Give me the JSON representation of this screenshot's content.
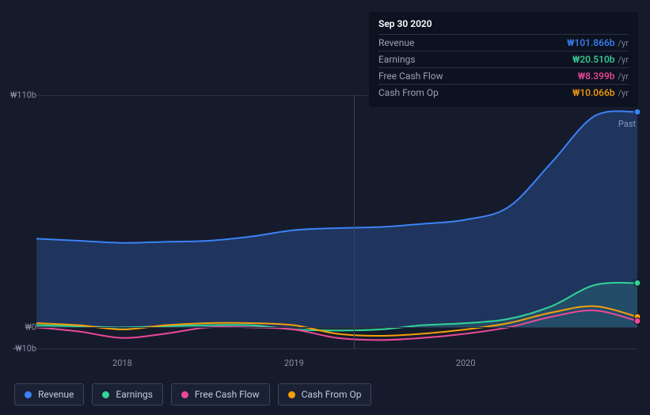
{
  "tooltip": {
    "date": "Sep 30 2020",
    "rows": [
      {
        "label": "Revenue",
        "value": "₩101.866b",
        "unit": "/yr",
        "color": "#3b82f6"
      },
      {
        "label": "Earnings",
        "value": "₩20.510b",
        "unit": "/yr",
        "color": "#34d399"
      },
      {
        "label": "Free Cash Flow",
        "value": "₩8.399b",
        "unit": "/yr",
        "color": "#ec4899"
      },
      {
        "label": "Cash From Op",
        "value": "₩10.066b",
        "unit": "/yr",
        "color": "#f59e0b"
      }
    ]
  },
  "chart": {
    "type": "area-line",
    "background": "#161b2b",
    "grid_color": "#2a3145",
    "ylim": [
      -10,
      110
    ],
    "y_ticks": [
      {
        "v": 110,
        "label": "₩110b"
      },
      {
        "v": 0,
        "label": "₩0"
      },
      {
        "v": -10,
        "label": "-₩10b"
      }
    ],
    "x_start": 2017.5,
    "x_end": 2021.0,
    "x_ticks": [
      {
        "v": 2018,
        "label": "2018"
      },
      {
        "v": 2019,
        "label": "2019"
      },
      {
        "v": 2020,
        "label": "2020"
      }
    ],
    "cursor_x": 2019.35,
    "past_label": "Past",
    "series": [
      {
        "name": "Revenue",
        "color": "#3b82f6",
        "fill": true,
        "fill_opacity": 0.25,
        "points": [
          [
            2017.5,
            42
          ],
          [
            2017.75,
            41
          ],
          [
            2018.0,
            40
          ],
          [
            2018.25,
            40.5
          ],
          [
            2018.5,
            41
          ],
          [
            2018.75,
            43
          ],
          [
            2019.0,
            46
          ],
          [
            2019.25,
            47
          ],
          [
            2019.5,
            47.5
          ],
          [
            2019.75,
            49
          ],
          [
            2020.0,
            51
          ],
          [
            2020.25,
            57
          ],
          [
            2020.5,
            78
          ],
          [
            2020.75,
            100
          ],
          [
            2021.0,
            102
          ]
        ]
      },
      {
        "name": "Earnings",
        "color": "#34d399",
        "fill": true,
        "fill_opacity": 0.15,
        "points": [
          [
            2017.5,
            1
          ],
          [
            2017.75,
            0.5
          ],
          [
            2018.0,
            0
          ],
          [
            2018.25,
            0.5
          ],
          [
            2018.5,
            1
          ],
          [
            2018.75,
            1
          ],
          [
            2019.0,
            -1
          ],
          [
            2019.25,
            -1.5
          ],
          [
            2019.5,
            -1
          ],
          [
            2019.75,
            1
          ],
          [
            2020.0,
            2
          ],
          [
            2020.25,
            4
          ],
          [
            2020.5,
            10
          ],
          [
            2020.75,
            20
          ],
          [
            2021.0,
            21
          ]
        ]
      },
      {
        "name": "Cash From Op",
        "color": "#f59e0b",
        "fill": false,
        "points": [
          [
            2017.5,
            2
          ],
          [
            2017.75,
            1
          ],
          [
            2018.0,
            -1
          ],
          [
            2018.25,
            1
          ],
          [
            2018.5,
            2
          ],
          [
            2018.75,
            2
          ],
          [
            2019.0,
            1
          ],
          [
            2019.25,
            -3
          ],
          [
            2019.5,
            -4
          ],
          [
            2019.75,
            -3
          ],
          [
            2020.0,
            -1
          ],
          [
            2020.25,
            2
          ],
          [
            2020.5,
            7
          ],
          [
            2020.75,
            10
          ],
          [
            2021.0,
            5
          ]
        ]
      },
      {
        "name": "Free Cash Flow",
        "color": "#ec4899",
        "fill": false,
        "points": [
          [
            2017.5,
            0
          ],
          [
            2017.75,
            -2
          ],
          [
            2018.0,
            -5
          ],
          [
            2018.25,
            -3
          ],
          [
            2018.5,
            0
          ],
          [
            2018.75,
            0
          ],
          [
            2019.0,
            -1
          ],
          [
            2019.25,
            -5
          ],
          [
            2019.5,
            -6
          ],
          [
            2019.75,
            -5
          ],
          [
            2020.0,
            -3
          ],
          [
            2020.25,
            0
          ],
          [
            2020.5,
            5
          ],
          [
            2020.75,
            8
          ],
          [
            2021.0,
            3
          ]
        ]
      }
    ]
  },
  "legend": [
    {
      "label": "Revenue",
      "color": "#3b82f6"
    },
    {
      "label": "Earnings",
      "color": "#34d399"
    },
    {
      "label": "Free Cash Flow",
      "color": "#ec4899"
    },
    {
      "label": "Cash From Op",
      "color": "#f59e0b"
    }
  ]
}
